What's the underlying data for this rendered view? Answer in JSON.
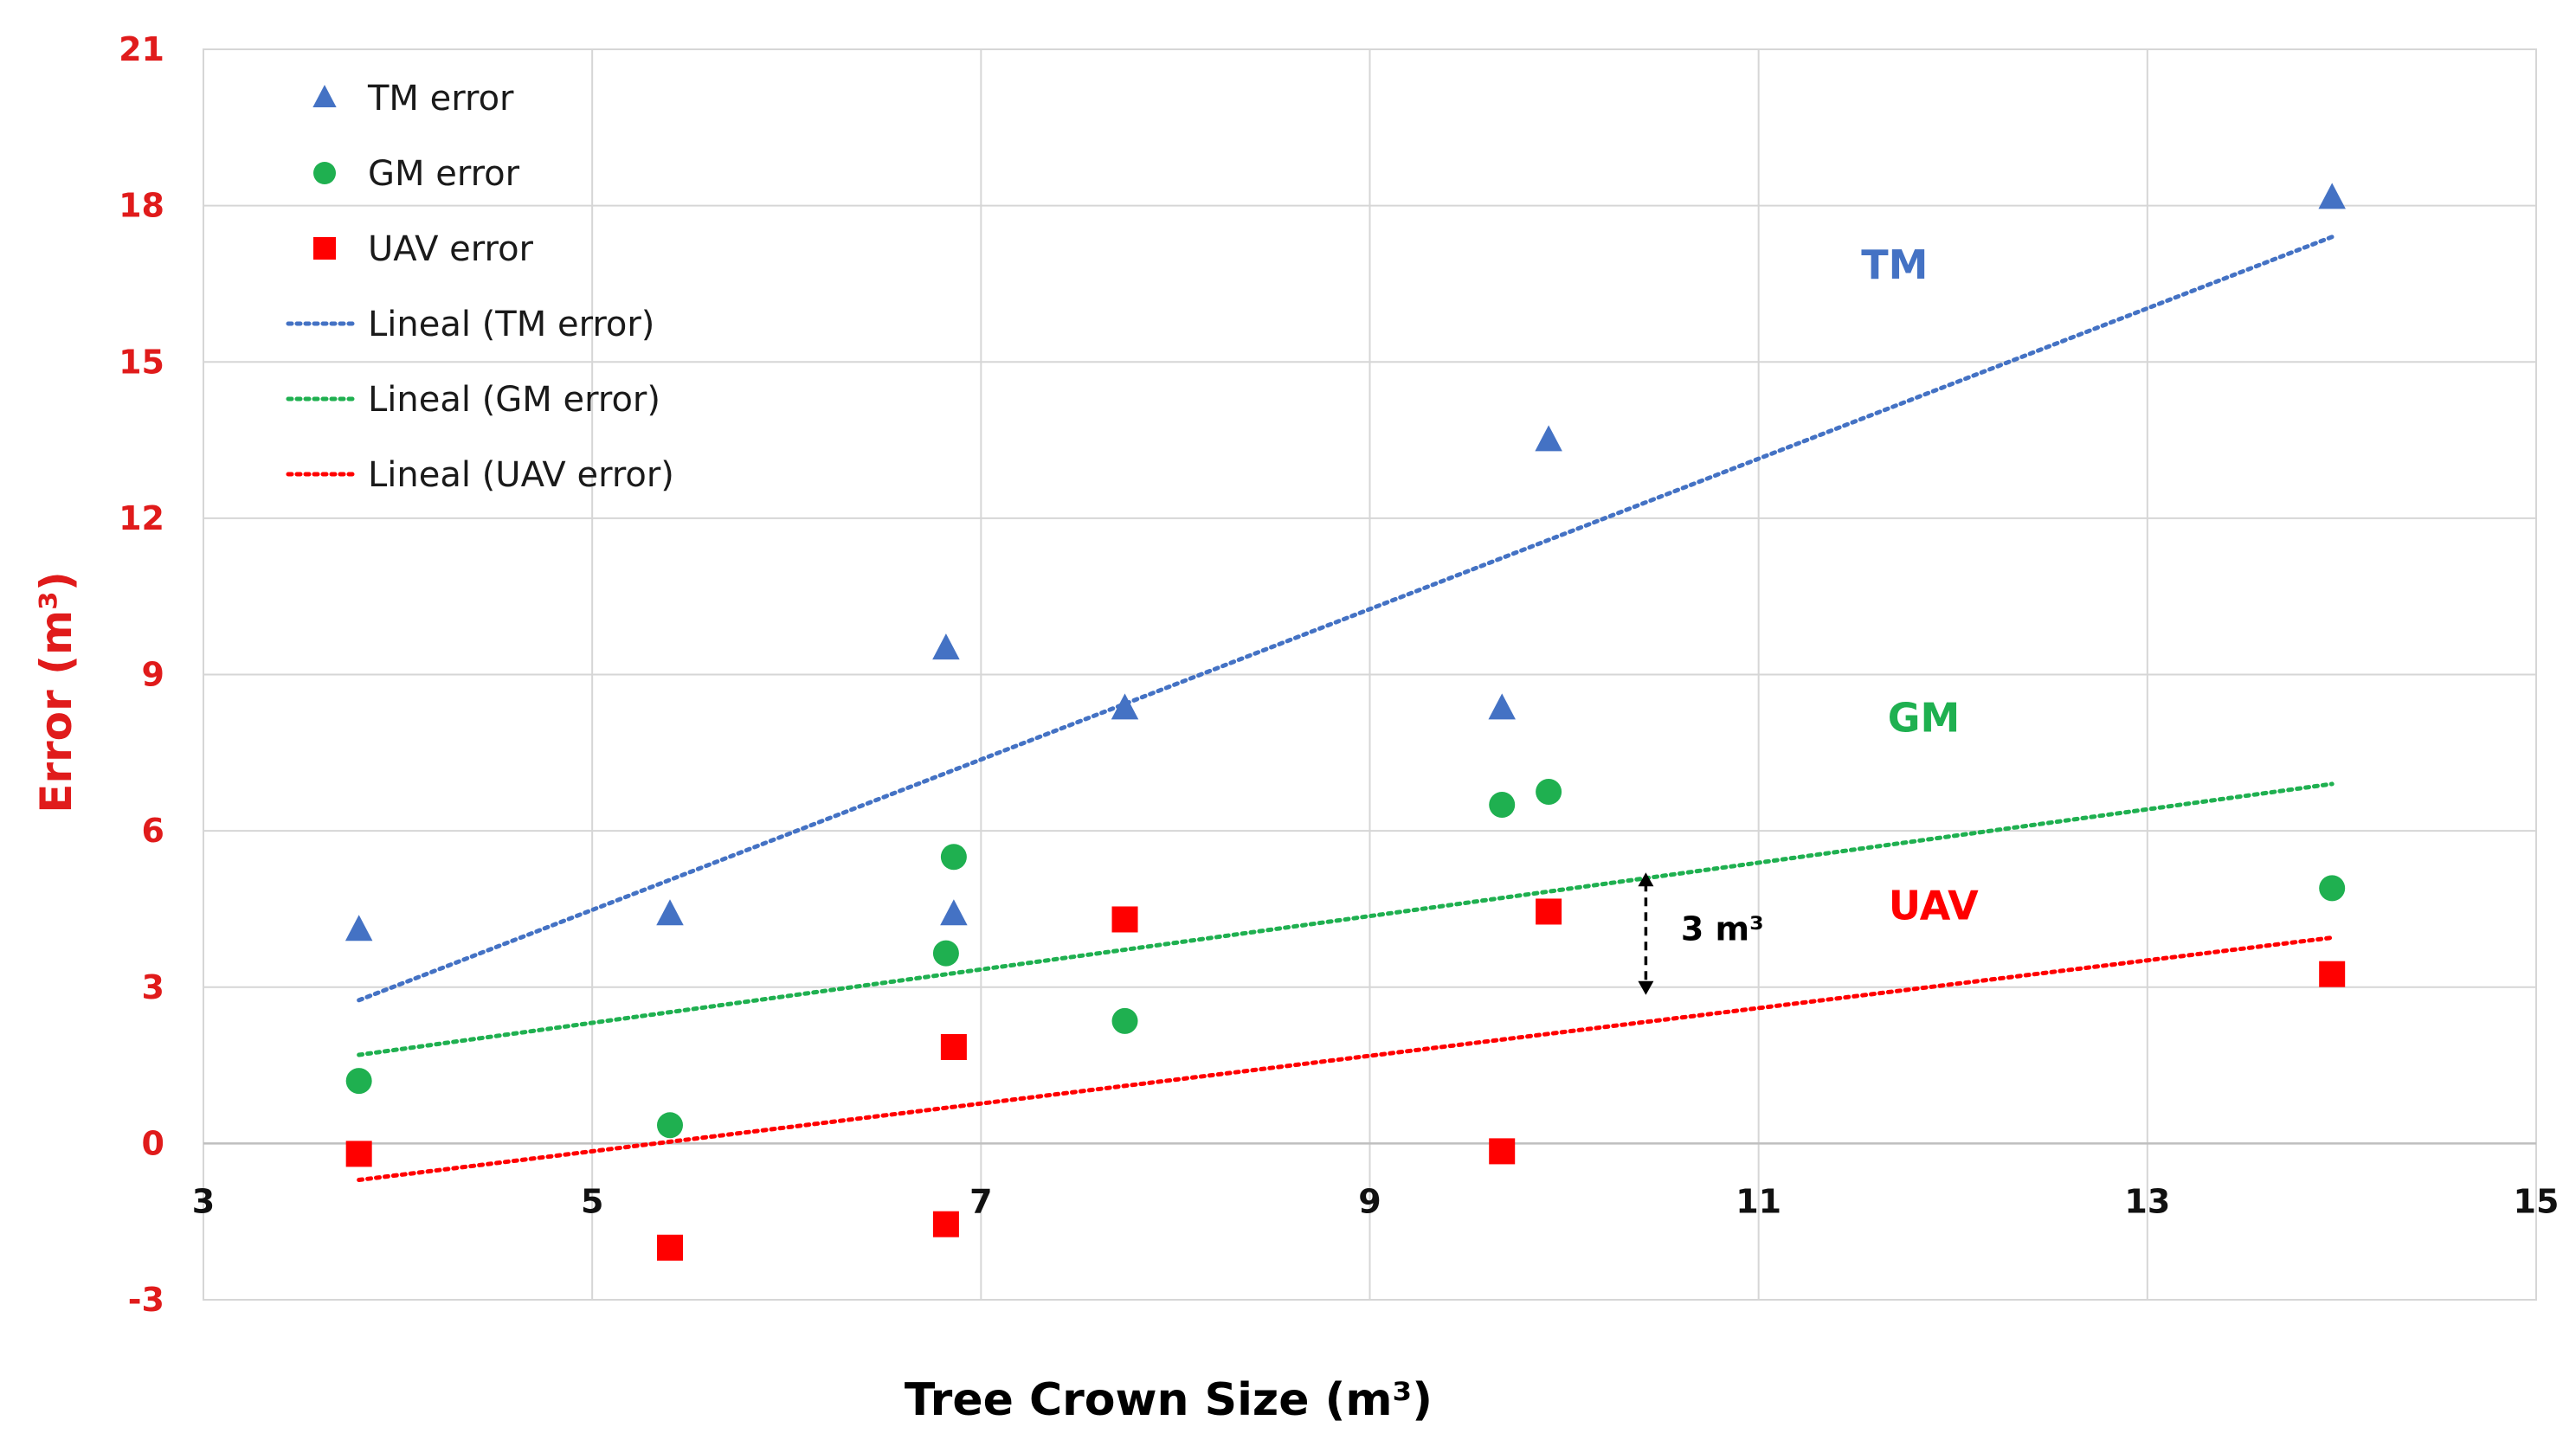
{
  "chart_data": {
    "type": "scatter",
    "xlabel": "Tree Crown Size (m³)",
    "ylabel": "Error (m³)",
    "xlim": [
      3,
      15
    ],
    "ylim": [
      -3,
      21
    ],
    "x_ticks": [
      3,
      5,
      7,
      9,
      11,
      13,
      15
    ],
    "y_ticks": [
      -3,
      0,
      3,
      6,
      9,
      12,
      15,
      18,
      21
    ],
    "grid": true,
    "legend_position": "top-left",
    "series": [
      {
        "name": "TM error",
        "marker": "triangle",
        "color": "#4472c4",
        "points": [
          [
            3.8,
            4.1
          ],
          [
            5.4,
            4.4
          ],
          [
            6.82,
            9.5
          ],
          [
            6.86,
            4.4
          ],
          [
            7.74,
            8.35
          ],
          [
            9.68,
            8.35
          ],
          [
            9.92,
            13.5
          ],
          [
            13.95,
            18.15
          ]
        ]
      },
      {
        "name": "GM error",
        "marker": "circle",
        "color": "#1fb050",
        "points": [
          [
            3.8,
            1.2
          ],
          [
            5.4,
            0.35
          ],
          [
            6.82,
            3.65
          ],
          [
            6.86,
            5.5
          ],
          [
            7.74,
            2.35
          ],
          [
            9.68,
            6.5
          ],
          [
            9.92,
            6.75
          ],
          [
            13.95,
            4.9
          ]
        ]
      },
      {
        "name": "UAV error",
        "marker": "square",
        "color": "#ff0000",
        "points": [
          [
            3.8,
            -0.2
          ],
          [
            5.4,
            -2.0
          ],
          [
            6.82,
            -1.55
          ],
          [
            6.86,
            1.85
          ],
          [
            7.74,
            4.3
          ],
          [
            9.68,
            -0.15
          ],
          [
            9.92,
            4.45
          ],
          [
            13.95,
            3.25
          ]
        ]
      }
    ],
    "trendlines": [
      {
        "name": "Lineal (TM error)",
        "color": "#4472c4",
        "x": [
          3.8,
          13.95
        ],
        "y": [
          2.75,
          17.4
        ]
      },
      {
        "name": "Lineal (GM error)",
        "color": "#1fb050",
        "x": [
          3.8,
          13.95
        ],
        "y": [
          1.7,
          6.9
        ]
      },
      {
        "name": "Lineal (UAV error)",
        "color": "#ff0000",
        "x": [
          3.8,
          13.95
        ],
        "y": [
          -0.7,
          3.95
        ]
      }
    ],
    "annotations": [
      {
        "text": "TM",
        "color": "#4472c4",
        "x": 11.7,
        "y": 16.6
      },
      {
        "text": "GM",
        "color": "#1fb050",
        "x": 11.85,
        "y": 7.9
      },
      {
        "text": "UAV",
        "color": "#ff0000",
        "x": 11.9,
        "y": 4.3
      },
      {
        "text": "3 m³",
        "color": "#000000",
        "x": 10.6,
        "y": 3.9,
        "arrow": {
          "x": 10.42,
          "y_from": 5.2,
          "y_to": 2.85
        }
      }
    ]
  },
  "legend_items": [
    "TM error",
    "GM error",
    "UAV error",
    "Lineal (TM error)",
    "Lineal (GM error)",
    "Lineal (UAV error)"
  ]
}
